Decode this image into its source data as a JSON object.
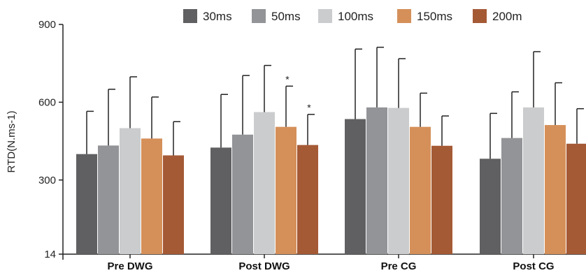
{
  "chart_data": {
    "type": "bar",
    "ylabel": "RTD(N.ms-1)",
    "ylim": [
      14,
      900
    ],
    "yticks": [
      14,
      300,
      600,
      900
    ],
    "categories": [
      "Pre DWG",
      "Post DWG",
      "Pre CG",
      "Post CG"
    ],
    "legend_position": "top",
    "grid": false,
    "series": [
      {
        "name": "30ms",
        "color": "#606062",
        "values": [
          400,
          425,
          535,
          382
        ],
        "errors": [
          165,
          205,
          270,
          175
        ]
      },
      {
        "name": "50ms",
        "color": "#939497",
        "values": [
          433,
          475,
          580,
          462
        ],
        "errors": [
          217,
          228,
          232,
          178
        ]
      },
      {
        "name": "100ms",
        "color": "#cbcccd",
        "values": [
          500,
          562,
          578,
          580
        ],
        "errors": [
          198,
          180,
          190,
          215
        ]
      },
      {
        "name": "150ms",
        "color": "#d59059",
        "values": [
          460,
          505,
          505,
          512
        ],
        "errors": [
          160,
          157,
          130,
          163
        ]
      },
      {
        "name": "200m",
        "color": "#a55a36",
        "values": [
          395,
          435,
          432,
          440
        ],
        "errors": [
          130,
          118,
          115,
          135
        ]
      }
    ],
    "annotations": [
      {
        "category": "Post DWG",
        "series": "150ms",
        "text": "*"
      },
      {
        "category": "Post DWG",
        "series": "200m",
        "text": "*"
      }
    ]
  }
}
